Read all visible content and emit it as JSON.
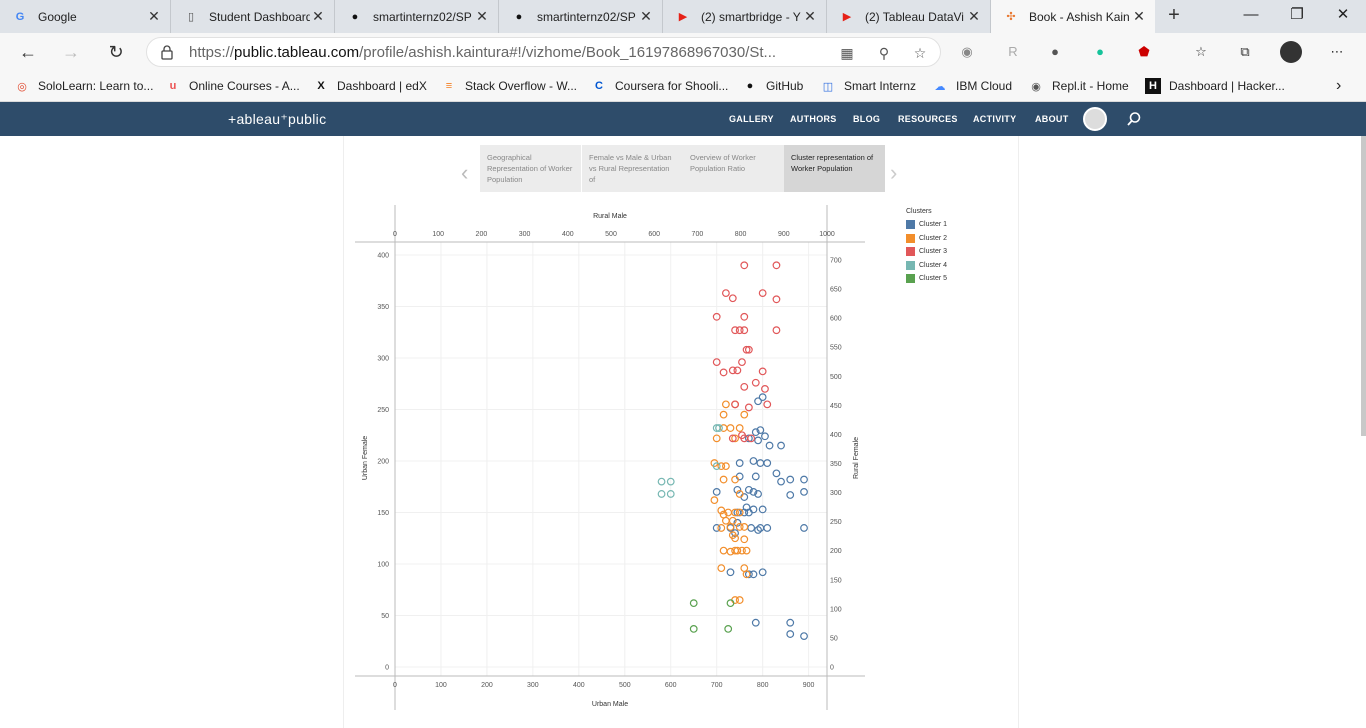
{
  "browser": {
    "tabs": [
      {
        "label": "Google",
        "icon": "G",
        "color": "#4285f4"
      },
      {
        "label": "Student Dashboard",
        "icon": "▯",
        "color": "#555"
      },
      {
        "label": "smartinternz02/SP",
        "icon": "●",
        "color": "#111"
      },
      {
        "label": "smartinternz02/SP",
        "icon": "●",
        "color": "#111"
      },
      {
        "label": "(2) smartbridge - Y",
        "icon": "▶",
        "color": "#e62117"
      },
      {
        "label": "(2) Tableau DataVi",
        "icon": "▶",
        "color": "#e62117"
      },
      {
        "label": "Book - Ashish Kain",
        "icon": "✣",
        "color": "#e8762d"
      }
    ],
    "url_prefix": "https://",
    "url_host": "public.tableau.com",
    "url_rest": "/profile/ashish.kaintura#!/vizhome/Book_16197868967030/St...",
    "bookmarks": [
      {
        "label": "SoloLearn: Learn to...",
        "icon": "◎",
        "color": "#e0452a"
      },
      {
        "label": "Online Courses - A...",
        "icon": "u",
        "color": "#ec5252"
      },
      {
        "label": "Dashboard | edX",
        "icon": "X",
        "color": "#111"
      },
      {
        "label": "Stack Overflow - W...",
        "icon": "≡",
        "color": "#f48024"
      },
      {
        "label": "Coursera for Shooli...",
        "icon": "C",
        "color": "#0056d2"
      },
      {
        "label": "GitHub",
        "icon": "●",
        "color": "#111"
      },
      {
        "label": "Smart Internz",
        "icon": "◫",
        "color": "#2d6cdf"
      },
      {
        "label": "IBM Cloud",
        "icon": "☁",
        "color": "#4589ff"
      },
      {
        "label": "Repl.it - Home",
        "icon": "◉",
        "color": "#555"
      },
      {
        "label": "Dashboard | Hacker...",
        "icon": "H",
        "color": "#fff"
      }
    ]
  },
  "tableau": {
    "logo": "+ableau⁺public",
    "nav": [
      "GALLERY",
      "AUTHORS",
      "BLOG",
      "RESOURCES",
      "ACTIVITY",
      "ABOUT"
    ]
  },
  "story": [
    {
      "label": "Geographical Representation of Worker Population"
    },
    {
      "label": "Female vs Male & Urban vs Rural Representation of"
    },
    {
      "label": "Overview of Worker Population Ratio"
    },
    {
      "label": "Cluster representation of Worker Population"
    }
  ],
  "legend": {
    "title": "Clusters",
    "items": [
      {
        "label": "Cluster 1",
        "color": "#4e79a7"
      },
      {
        "label": "Cluster 2",
        "color": "#f28e2b"
      },
      {
        "label": "Cluster 3",
        "color": "#e15759"
      },
      {
        "label": "Cluster 4",
        "color": "#76b7b2"
      },
      {
        "label": "Cluster 5",
        "color": "#59a14f"
      }
    ]
  },
  "chart_data": {
    "type": "scatter",
    "xlabel": "Urban Male",
    "x2label": "Rural Male",
    "ylabel": "Urban Female",
    "y2label": "Rural Female",
    "xlim": [
      0,
      940
    ],
    "x2lim": [
      0,
      1000
    ],
    "ylim": [
      0,
      400
    ],
    "y2lim": [
      0,
      700
    ],
    "x_ticks": [
      0,
      100,
      200,
      300,
      400,
      500,
      600,
      700,
      800,
      900
    ],
    "x2_ticks": [
      0,
      100,
      200,
      300,
      400,
      500,
      600,
      700,
      800,
      900,
      1000
    ],
    "y_ticks": [
      0,
      50,
      100,
      150,
      200,
      250,
      300,
      350,
      400
    ],
    "y2_ticks": [
      0,
      50,
      100,
      150,
      200,
      250,
      300,
      350,
      400,
      450,
      500,
      550,
      600,
      650,
      700
    ],
    "series": [
      {
        "name": "Cluster 1",
        "points": [
          [
            800,
            262
          ],
          [
            790,
            258
          ],
          [
            795,
            230
          ],
          [
            790,
            220
          ],
          [
            770,
            222
          ],
          [
            805,
            224
          ],
          [
            815,
            215
          ],
          [
            840,
            215
          ],
          [
            785,
            228
          ],
          [
            780,
            200
          ],
          [
            750,
            198
          ],
          [
            795,
            198
          ],
          [
            810,
            198
          ],
          [
            750,
            185
          ],
          [
            785,
            185
          ],
          [
            745,
            172
          ],
          [
            770,
            172
          ],
          [
            780,
            170
          ],
          [
            790,
            168
          ],
          [
            830,
            188
          ],
          [
            840,
            180
          ],
          [
            860,
            182
          ],
          [
            890,
            182
          ],
          [
            860,
            167
          ],
          [
            890,
            170
          ],
          [
            700,
            170
          ],
          [
            760,
            165
          ],
          [
            765,
            155
          ],
          [
            780,
            153
          ],
          [
            800,
            153
          ],
          [
            745,
            150
          ],
          [
            760,
            150
          ],
          [
            775,
            135
          ],
          [
            795,
            135
          ],
          [
            810,
            135
          ],
          [
            790,
            133
          ],
          [
            730,
            135
          ],
          [
            740,
            130
          ],
          [
            890,
            135
          ],
          [
            800,
            92
          ],
          [
            780,
            90
          ],
          [
            770,
            90
          ],
          [
            730,
            92
          ],
          [
            785,
            43
          ],
          [
            860,
            43
          ],
          [
            860,
            32
          ],
          [
            890,
            30
          ],
          [
            700,
            135
          ],
          [
            770,
            150
          ],
          [
            745,
            140
          ]
        ]
      },
      {
        "name": "Cluster 2",
        "points": [
          [
            720,
            255
          ],
          [
            740,
            255
          ],
          [
            760,
            245
          ],
          [
            715,
            245
          ],
          [
            715,
            232
          ],
          [
            730,
            232
          ],
          [
            750,
            232
          ],
          [
            740,
            222
          ],
          [
            700,
            222
          ],
          [
            695,
            198
          ],
          [
            720,
            195
          ],
          [
            710,
            195
          ],
          [
            715,
            182
          ],
          [
            740,
            182
          ],
          [
            750,
            168
          ],
          [
            695,
            162
          ],
          [
            710,
            152
          ],
          [
            715,
            148
          ],
          [
            725,
            150
          ],
          [
            740,
            150
          ],
          [
            750,
            150
          ],
          [
            735,
            142
          ],
          [
            720,
            142
          ],
          [
            750,
            136
          ],
          [
            760,
            136
          ],
          [
            730,
            136
          ],
          [
            710,
            135
          ],
          [
            735,
            128
          ],
          [
            760,
            124
          ],
          [
            740,
            125
          ],
          [
            745,
            113
          ],
          [
            755,
            113
          ],
          [
            765,
            113
          ],
          [
            740,
            113
          ],
          [
            715,
            113
          ],
          [
            730,
            112
          ],
          [
            710,
            96
          ],
          [
            760,
            96
          ],
          [
            765,
            90
          ],
          [
            740,
            65
          ],
          [
            750,
            65
          ]
        ]
      },
      {
        "name": "Cluster 3",
        "points": [
          [
            760,
            390
          ],
          [
            830,
            390
          ],
          [
            720,
            363
          ],
          [
            735,
            358
          ],
          [
            800,
            363
          ],
          [
            830,
            357
          ],
          [
            700,
            340
          ],
          [
            760,
            340
          ],
          [
            740,
            327
          ],
          [
            750,
            327
          ],
          [
            760,
            327
          ],
          [
            830,
            327
          ],
          [
            765,
            308
          ],
          [
            770,
            308
          ],
          [
            700,
            296
          ],
          [
            755,
            296
          ],
          [
            715,
            286
          ],
          [
            735,
            288
          ],
          [
            745,
            288
          ],
          [
            800,
            287
          ],
          [
            760,
            272
          ],
          [
            785,
            276
          ],
          [
            805,
            270
          ],
          [
            770,
            252
          ],
          [
            740,
            255
          ],
          [
            810,
            255
          ],
          [
            735,
            222
          ],
          [
            755,
            225
          ],
          [
            760,
            222
          ],
          [
            775,
            222
          ]
        ]
      },
      {
        "name": "Cluster 4",
        "points": [
          [
            705,
            232
          ],
          [
            700,
            232
          ],
          [
            580,
            180
          ],
          [
            600,
            180
          ],
          [
            580,
            168
          ],
          [
            600,
            168
          ],
          [
            700,
            195
          ]
        ]
      },
      {
        "name": "Cluster 5",
        "points": [
          [
            650,
            62
          ],
          [
            730,
            62
          ],
          [
            650,
            37
          ],
          [
            725,
            37
          ]
        ]
      }
    ]
  }
}
